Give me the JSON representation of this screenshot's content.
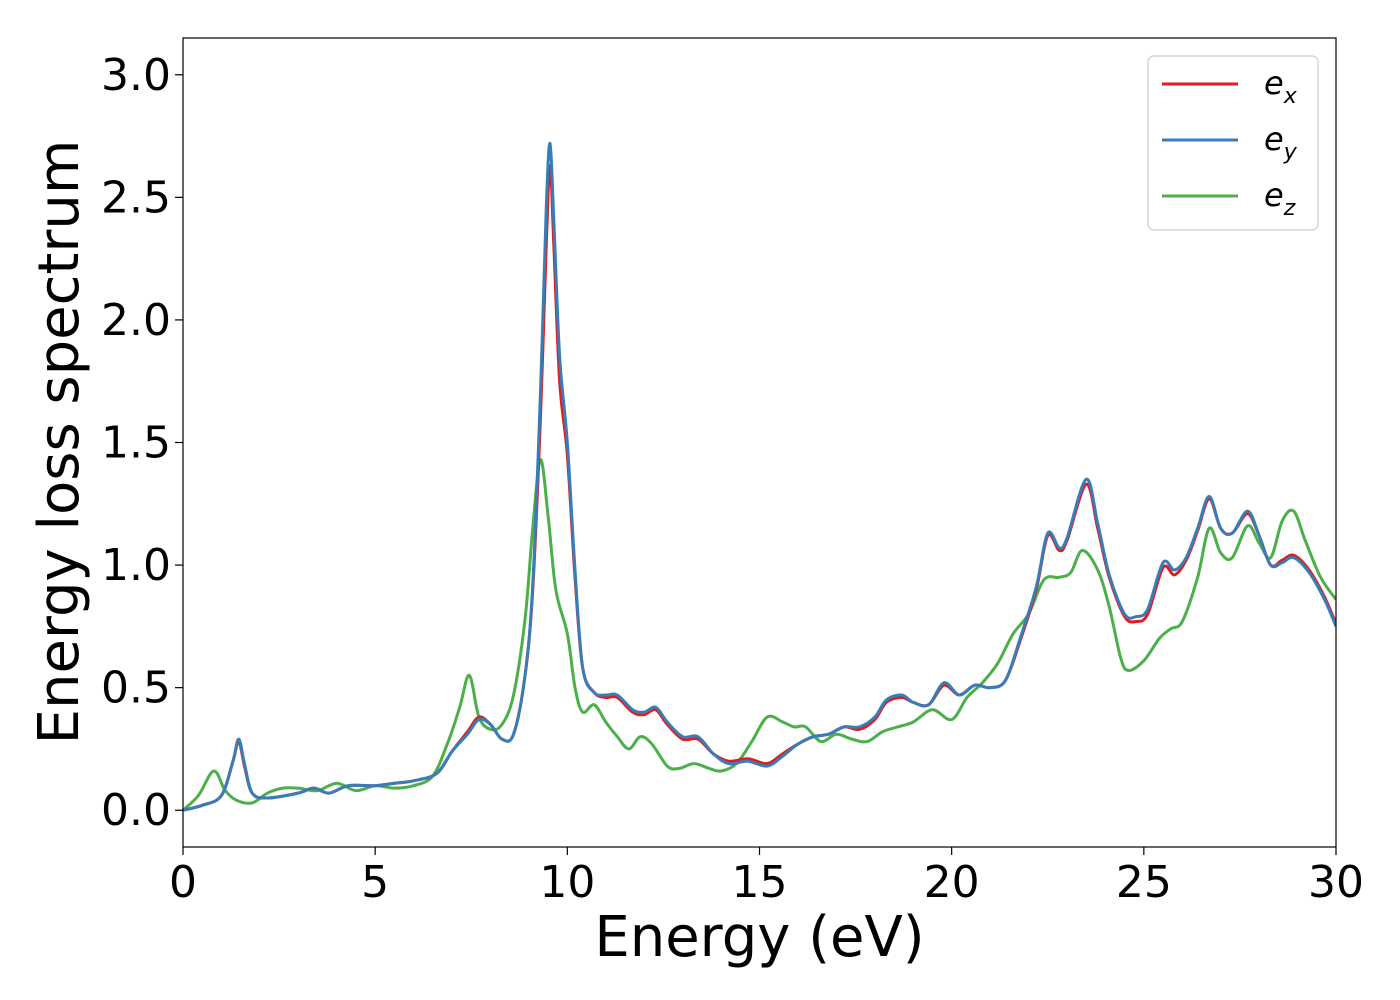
{
  "chart_data": {
    "type": "line",
    "xlabel": "Energy (eV)",
    "ylabel": "Energy loss spectrum",
    "xlim": [
      0,
      30
    ],
    "ylim": [
      -0.15,
      3.15
    ],
    "xticks": [
      0,
      5,
      10,
      15,
      20,
      25,
      30
    ],
    "yticks": [
      0.0,
      0.5,
      1.0,
      1.5,
      2.0,
      2.5,
      3.0
    ],
    "xtick_labels": [
      "0",
      "5",
      "10",
      "15",
      "20",
      "25",
      "30"
    ],
    "ytick_labels": [
      "0.0",
      "0.5",
      "1.0",
      "1.5",
      "2.0",
      "2.5",
      "3.0"
    ],
    "grid": false,
    "legend_position": "top-right",
    "series": [
      {
        "name": "e_x",
        "label_main": "e",
        "label_sub": "x",
        "color": "#e41a1c",
        "points": [
          [
            0,
            0.0
          ],
          [
            0.5,
            0.02
          ],
          [
            1.0,
            0.06
          ],
          [
            1.3,
            0.2
          ],
          [
            1.45,
            0.28
          ],
          [
            1.6,
            0.18
          ],
          [
            1.8,
            0.07
          ],
          [
            2.2,
            0.05
          ],
          [
            3.0,
            0.07
          ],
          [
            3.4,
            0.09
          ],
          [
            3.8,
            0.07
          ],
          [
            4.3,
            0.1
          ],
          [
            5.0,
            0.1
          ],
          [
            5.5,
            0.11
          ],
          [
            6.0,
            0.12
          ],
          [
            6.6,
            0.15
          ],
          [
            7.0,
            0.24
          ],
          [
            7.4,
            0.32
          ],
          [
            7.7,
            0.38
          ],
          [
            8.0,
            0.35
          ],
          [
            8.3,
            0.29
          ],
          [
            8.6,
            0.31
          ],
          [
            8.9,
            0.55
          ],
          [
            9.1,
            0.9
          ],
          [
            9.3,
            1.6
          ],
          [
            9.45,
            2.3
          ],
          [
            9.55,
            2.63
          ],
          [
            9.65,
            2.3
          ],
          [
            9.8,
            1.75
          ],
          [
            10.0,
            1.45
          ],
          [
            10.2,
            0.95
          ],
          [
            10.4,
            0.58
          ],
          [
            10.7,
            0.48
          ],
          [
            11.0,
            0.46
          ],
          [
            11.3,
            0.46
          ],
          [
            11.7,
            0.4
          ],
          [
            12.0,
            0.39
          ],
          [
            12.3,
            0.41
          ],
          [
            12.6,
            0.35
          ],
          [
            13.0,
            0.29
          ],
          [
            13.4,
            0.29
          ],
          [
            13.8,
            0.23
          ],
          [
            14.2,
            0.2
          ],
          [
            14.7,
            0.21
          ],
          [
            15.2,
            0.19
          ],
          [
            15.6,
            0.23
          ],
          [
            16.0,
            0.27
          ],
          [
            16.4,
            0.3
          ],
          [
            16.8,
            0.31
          ],
          [
            17.2,
            0.34
          ],
          [
            17.6,
            0.33
          ],
          [
            18.0,
            0.37
          ],
          [
            18.3,
            0.44
          ],
          [
            18.7,
            0.46
          ],
          [
            19.0,
            0.44
          ],
          [
            19.4,
            0.43
          ],
          [
            19.8,
            0.51
          ],
          [
            20.2,
            0.47
          ],
          [
            20.6,
            0.51
          ],
          [
            21.0,
            0.5
          ],
          [
            21.4,
            0.53
          ],
          [
            21.8,
            0.7
          ],
          [
            22.2,
            0.9
          ],
          [
            22.5,
            1.12
          ],
          [
            22.8,
            1.06
          ],
          [
            23.0,
            1.1
          ],
          [
            23.5,
            1.33
          ],
          [
            23.8,
            1.15
          ],
          [
            24.1,
            0.95
          ],
          [
            24.5,
            0.79
          ],
          [
            24.8,
            0.77
          ],
          [
            25.1,
            0.8
          ],
          [
            25.5,
            0.99
          ],
          [
            25.8,
            0.96
          ],
          [
            26.1,
            1.02
          ],
          [
            26.4,
            1.14
          ],
          [
            26.7,
            1.27
          ],
          [
            27.0,
            1.15
          ],
          [
            27.3,
            1.13
          ],
          [
            27.7,
            1.21
          ],
          [
            28.0,
            1.12
          ],
          [
            28.3,
            1.0
          ],
          [
            28.6,
            1.02
          ],
          [
            28.9,
            1.04
          ],
          [
            29.3,
            0.98
          ],
          [
            29.7,
            0.87
          ],
          [
            30.0,
            0.76
          ]
        ]
      },
      {
        "name": "e_y",
        "label_main": "e",
        "label_sub": "y",
        "color": "#377eb8",
        "points": [
          [
            0,
            0.0
          ],
          [
            0.5,
            0.02
          ],
          [
            1.0,
            0.06
          ],
          [
            1.3,
            0.2
          ],
          [
            1.45,
            0.29
          ],
          [
            1.6,
            0.19
          ],
          [
            1.8,
            0.07
          ],
          [
            2.2,
            0.05
          ],
          [
            3.0,
            0.07
          ],
          [
            3.4,
            0.09
          ],
          [
            3.8,
            0.07
          ],
          [
            4.3,
            0.1
          ],
          [
            5.0,
            0.1
          ],
          [
            5.5,
            0.11
          ],
          [
            6.0,
            0.12
          ],
          [
            6.6,
            0.15
          ],
          [
            7.0,
            0.24
          ],
          [
            7.4,
            0.31
          ],
          [
            7.7,
            0.37
          ],
          [
            8.0,
            0.35
          ],
          [
            8.3,
            0.29
          ],
          [
            8.6,
            0.31
          ],
          [
            8.9,
            0.55
          ],
          [
            9.1,
            0.92
          ],
          [
            9.3,
            1.7
          ],
          [
            9.45,
            2.45
          ],
          [
            9.55,
            2.72
          ],
          [
            9.65,
            2.4
          ],
          [
            9.8,
            1.85
          ],
          [
            10.0,
            1.5
          ],
          [
            10.2,
            0.98
          ],
          [
            10.4,
            0.58
          ],
          [
            10.7,
            0.48
          ],
          [
            11.0,
            0.47
          ],
          [
            11.3,
            0.47
          ],
          [
            11.7,
            0.41
          ],
          [
            12.0,
            0.4
          ],
          [
            12.3,
            0.42
          ],
          [
            12.6,
            0.36
          ],
          [
            13.0,
            0.3
          ],
          [
            13.4,
            0.3
          ],
          [
            13.8,
            0.23
          ],
          [
            14.2,
            0.19
          ],
          [
            14.7,
            0.2
          ],
          [
            15.2,
            0.18
          ],
          [
            15.6,
            0.22
          ],
          [
            16.0,
            0.27
          ],
          [
            16.4,
            0.3
          ],
          [
            16.8,
            0.31
          ],
          [
            17.2,
            0.34
          ],
          [
            17.6,
            0.34
          ],
          [
            18.0,
            0.38
          ],
          [
            18.3,
            0.45
          ],
          [
            18.7,
            0.47
          ],
          [
            19.0,
            0.44
          ],
          [
            19.4,
            0.43
          ],
          [
            19.8,
            0.52
          ],
          [
            20.2,
            0.47
          ],
          [
            20.6,
            0.51
          ],
          [
            21.0,
            0.5
          ],
          [
            21.4,
            0.53
          ],
          [
            21.8,
            0.71
          ],
          [
            22.2,
            0.91
          ],
          [
            22.5,
            1.13
          ],
          [
            22.8,
            1.07
          ],
          [
            23.0,
            1.11
          ],
          [
            23.5,
            1.35
          ],
          [
            23.8,
            1.17
          ],
          [
            24.1,
            0.96
          ],
          [
            24.5,
            0.8
          ],
          [
            24.8,
            0.79
          ],
          [
            25.1,
            0.82
          ],
          [
            25.5,
            1.01
          ],
          [
            25.8,
            0.98
          ],
          [
            26.1,
            1.03
          ],
          [
            26.4,
            1.15
          ],
          [
            26.7,
            1.28
          ],
          [
            27.0,
            1.15
          ],
          [
            27.3,
            1.13
          ],
          [
            27.7,
            1.22
          ],
          [
            28.0,
            1.12
          ],
          [
            28.3,
            1.0
          ],
          [
            28.6,
            1.01
          ],
          [
            28.9,
            1.03
          ],
          [
            29.3,
            0.97
          ],
          [
            29.7,
            0.86
          ],
          [
            30.0,
            0.75
          ]
        ]
      },
      {
        "name": "e_z",
        "label_main": "e",
        "label_sub": "z",
        "color": "#4daf4a",
        "points": [
          [
            0,
            0.0
          ],
          [
            0.4,
            0.06
          ],
          [
            0.8,
            0.16
          ],
          [
            1.1,
            0.08
          ],
          [
            1.4,
            0.04
          ],
          [
            1.8,
            0.03
          ],
          [
            2.2,
            0.07
          ],
          [
            2.6,
            0.09
          ],
          [
            3.0,
            0.09
          ],
          [
            3.5,
            0.08
          ],
          [
            4.0,
            0.11
          ],
          [
            4.5,
            0.08
          ],
          [
            5.0,
            0.1
          ],
          [
            5.5,
            0.09
          ],
          [
            6.0,
            0.1
          ],
          [
            6.5,
            0.14
          ],
          [
            6.9,
            0.28
          ],
          [
            7.2,
            0.42
          ],
          [
            7.45,
            0.55
          ],
          [
            7.7,
            0.38
          ],
          [
            8.0,
            0.33
          ],
          [
            8.3,
            0.35
          ],
          [
            8.6,
            0.47
          ],
          [
            8.9,
            0.78
          ],
          [
            9.1,
            1.15
          ],
          [
            9.3,
            1.43
          ],
          [
            9.5,
            1.2
          ],
          [
            9.7,
            0.9
          ],
          [
            10.0,
            0.72
          ],
          [
            10.2,
            0.5
          ],
          [
            10.4,
            0.4
          ],
          [
            10.7,
            0.43
          ],
          [
            11.0,
            0.36
          ],
          [
            11.3,
            0.3
          ],
          [
            11.6,
            0.25
          ],
          [
            11.9,
            0.3
          ],
          [
            12.2,
            0.27
          ],
          [
            12.6,
            0.18
          ],
          [
            12.9,
            0.17
          ],
          [
            13.3,
            0.19
          ],
          [
            13.7,
            0.17
          ],
          [
            14.0,
            0.16
          ],
          [
            14.4,
            0.19
          ],
          [
            14.8,
            0.28
          ],
          [
            15.2,
            0.38
          ],
          [
            15.6,
            0.36
          ],
          [
            15.9,
            0.34
          ],
          [
            16.2,
            0.34
          ],
          [
            16.6,
            0.28
          ],
          [
            17.0,
            0.31
          ],
          [
            17.4,
            0.29
          ],
          [
            17.8,
            0.28
          ],
          [
            18.2,
            0.32
          ],
          [
            18.6,
            0.34
          ],
          [
            19.0,
            0.36
          ],
          [
            19.5,
            0.41
          ],
          [
            20.0,
            0.37
          ],
          [
            20.4,
            0.46
          ],
          [
            20.8,
            0.52
          ],
          [
            21.2,
            0.6
          ],
          [
            21.6,
            0.72
          ],
          [
            22.0,
            0.8
          ],
          [
            22.4,
            0.94
          ],
          [
            22.8,
            0.95
          ],
          [
            23.1,
            0.97
          ],
          [
            23.4,
            1.06
          ],
          [
            23.8,
            0.98
          ],
          [
            24.1,
            0.83
          ],
          [
            24.4,
            0.62
          ],
          [
            24.6,
            0.57
          ],
          [
            25.0,
            0.61
          ],
          [
            25.4,
            0.7
          ],
          [
            25.7,
            0.74
          ],
          [
            26.0,
            0.77
          ],
          [
            26.4,
            0.95
          ],
          [
            26.7,
            1.15
          ],
          [
            27.0,
            1.05
          ],
          [
            27.3,
            1.03
          ],
          [
            27.7,
            1.16
          ],
          [
            28.0,
            1.09
          ],
          [
            28.3,
            1.03
          ],
          [
            28.6,
            1.18
          ],
          [
            28.9,
            1.22
          ],
          [
            29.2,
            1.1
          ],
          [
            29.6,
            0.95
          ],
          [
            30.0,
            0.86
          ]
        ]
      }
    ]
  }
}
